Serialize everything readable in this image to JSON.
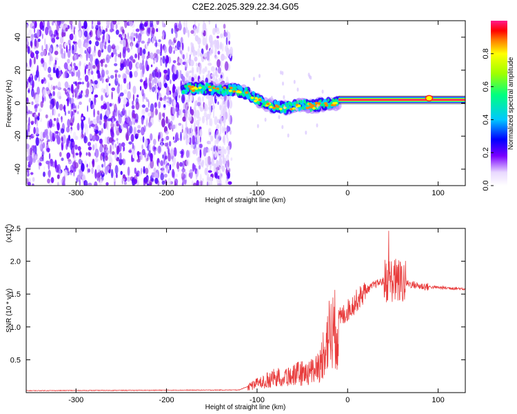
{
  "title": "C2E2.2025.329.22.34.G05",
  "chart_data": [
    {
      "type": "heatmap",
      "name": "spectrogram",
      "xlabel": "Height of straight line (km)",
      "ylabel": "Frequency (Hz)",
      "xlim": [
        -355,
        130
      ],
      "ylim": [
        -50,
        50
      ],
      "xticks": [
        -300,
        -200,
        -100,
        0,
        100
      ],
      "yticks": [
        -40,
        -20,
        0,
        20,
        40
      ],
      "ridge": {
        "x": [
          -180,
          -160,
          -140,
          -125,
          -110,
          -100,
          -90,
          -80,
          -70,
          -60,
          -50,
          -40,
          -30,
          -20,
          -10,
          0,
          20,
          40,
          60,
          80,
          90,
          100,
          130
        ],
        "freq": [
          9,
          9,
          8,
          8,
          6,
          2,
          -1,
          -2,
          -3,
          -2,
          -1,
          -2,
          -1,
          0,
          0,
          0,
          1,
          1,
          1,
          2,
          3,
          2,
          2
        ]
      },
      "colorbar": {
        "label": "Normalized spectral amplitude",
        "ticks": [
          "0.0",
          "0.2",
          "0.4",
          "0.6",
          "0.8"
        ],
        "range": [
          0,
          1
        ]
      }
    },
    {
      "type": "line",
      "name": "snr",
      "xlabel": "Height of straight line (km)",
      "ylabel": "SNR (10 * v/v)",
      "scale_label": "(x10",
      "scale_exp": "4",
      "scale_close": ")",
      "xlim": [
        -355,
        130
      ],
      "ylim": [
        0,
        2.5
      ],
      "xticks": [
        -300,
        -200,
        -100,
        0,
        100
      ],
      "yticks": [
        "0.5",
        "1.0",
        "1.5",
        "2.0",
        "2.5"
      ],
      "color": "#e83a3a",
      "envelope": {
        "x": [
          -355,
          -120,
          -100,
          -80,
          -60,
          -40,
          -30,
          -25,
          -20,
          -15,
          -10,
          0,
          10,
          20,
          30,
          40,
          50,
          55,
          60,
          70,
          80,
          100,
          130
        ],
        "y": [
          0.03,
          0.04,
          0.15,
          0.25,
          0.3,
          0.35,
          0.5,
          0.8,
          1.0,
          1.05,
          1.1,
          1.25,
          1.4,
          1.55,
          1.65,
          1.7,
          1.72,
          1.7,
          1.68,
          1.65,
          1.62,
          1.6,
          1.58
        ]
      }
    }
  ]
}
